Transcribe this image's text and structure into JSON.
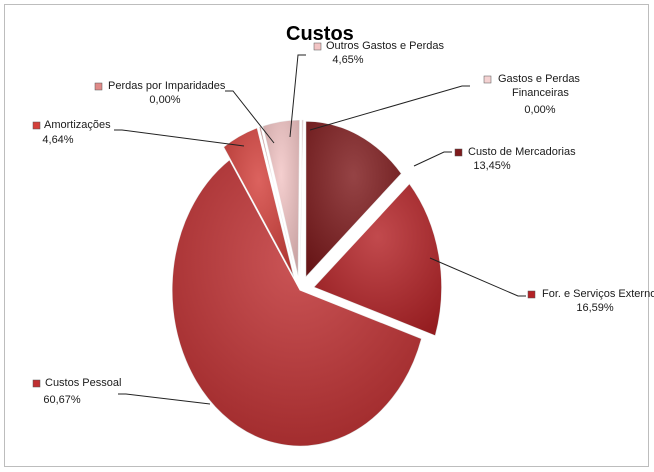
{
  "chart_data": {
    "type": "pie",
    "title": "Custos",
    "slices": [
      {
        "name": "Custo de Mercadorias",
        "value_label": "13,45%",
        "value": 13.45,
        "color": "#7e1a1c",
        "exploded": true
      },
      {
        "name": "For. e Serviços Externos",
        "value_label": "16,59%",
        "value": 16.59,
        "color": "#b42226",
        "exploded": true
      },
      {
        "name": "Custos  Pessoal",
        "value_label": "60,67%",
        "value": 60.67,
        "color": "#bf2f31",
        "exploded": false
      },
      {
        "name": "Amortizações",
        "value_label": "4,64%",
        "value": 4.64,
        "color": "#d4403b",
        "exploded": true
      },
      {
        "name": "Perdas por Imparidades",
        "value_label": "0,00%",
        "value": 0.0,
        "color": "#e08a88",
        "exploded": true
      },
      {
        "name": "Outros Gastos  e  Perdas",
        "value_label": "4,65%",
        "value": 4.65,
        "color": "#f2c4c4",
        "exploded": true
      },
      {
        "name": "Gastos e Perdas Financeiras",
        "value_label": "0,00%",
        "value": 0.0,
        "color": "#f4d2d2",
        "exploded": true
      }
    ]
  }
}
